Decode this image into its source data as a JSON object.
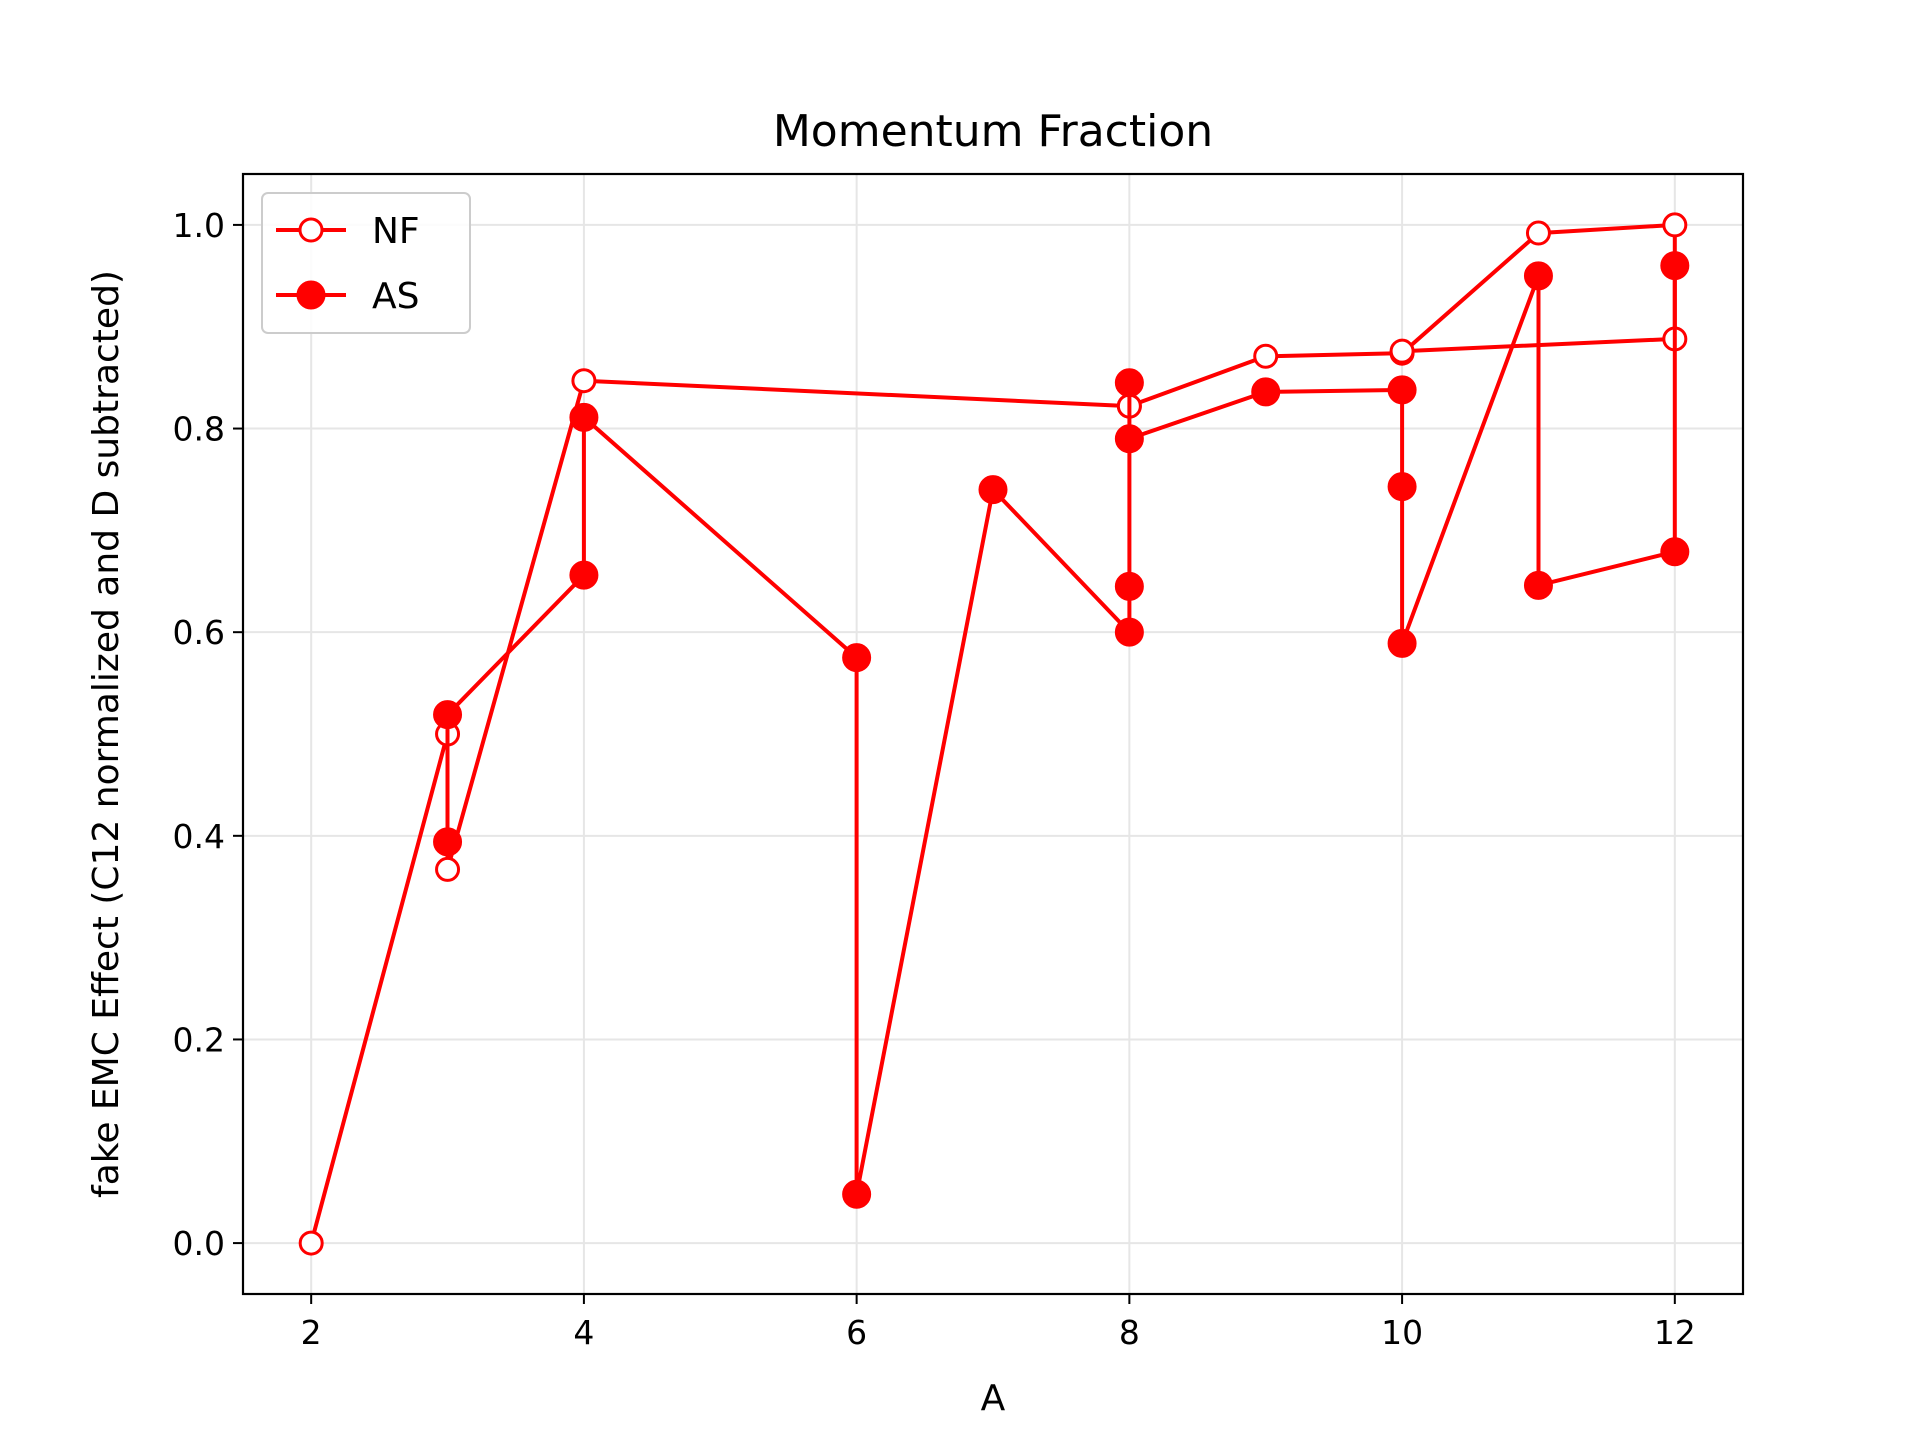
{
  "chart_data": {
    "type": "line",
    "title": "Momentum Fraction",
    "xlabel": "A",
    "ylabel": "fake EMC Effect (C12 normalized and D subtracted)",
    "xlim": [
      1.5,
      12.5
    ],
    "ylim": [
      -0.05,
      1.05
    ],
    "xticks": [
      2,
      4,
      6,
      8,
      10,
      12
    ],
    "yticks": [
      0.0,
      0.2,
      0.4,
      0.6,
      0.8,
      1.0
    ],
    "xtick_labels": [
      "2",
      "4",
      "6",
      "8",
      "10",
      "12"
    ],
    "ytick_labels": [
      "0.0",
      "0.2",
      "0.4",
      "0.6",
      "0.8",
      "1.0"
    ],
    "grid": true,
    "legend_position": "upper-left",
    "color": "#ff0000",
    "series": [
      {
        "name": "NF",
        "marker": "open-circle",
        "x": [
          2,
          3,
          3,
          4,
          8,
          8,
          9,
          10,
          11,
          12,
          12,
          10
        ],
        "y": [
          0.0,
          0.5,
          0.367,
          0.847,
          0.822,
          0.822,
          0.871,
          0.874,
          0.992,
          1.0,
          0.888,
          0.876
        ]
      },
      {
        "name": "AS",
        "marker": "filled-circle",
        "x": [
          3,
          3,
          4,
          4,
          6,
          6,
          7,
          8,
          8,
          8,
          8,
          9,
          10,
          10,
          10,
          11,
          11,
          12,
          12
        ],
        "y": [
          0.394,
          0.519,
          0.656,
          0.811,
          0.575,
          0.048,
          0.74,
          0.6,
          0.645,
          0.845,
          0.79,
          0.836,
          0.838,
          0.743,
          0.589,
          0.95,
          0.646,
          0.679,
          0.96
        ]
      }
    ]
  }
}
